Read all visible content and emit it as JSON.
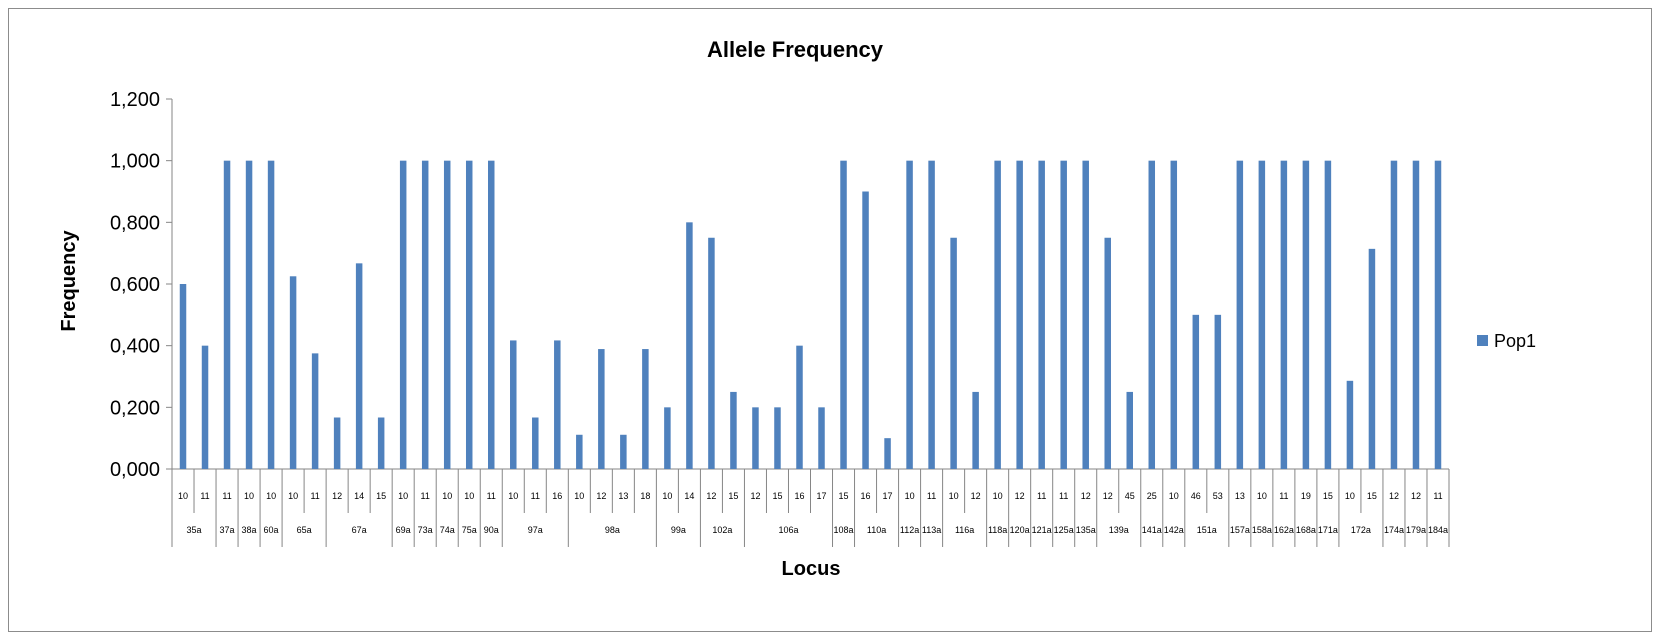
{
  "chart_data": {
    "type": "bar",
    "title": "Allele Frequency",
    "xlabel": "Locus",
    "ylabel": "Frequency",
    "ylim": [
      0,
      1.2
    ],
    "yticks": [
      0,
      0.2,
      0.4,
      0.6,
      0.8,
      1.0,
      1.2
    ],
    "ytick_labels": [
      "0,000",
      "0,200",
      "0,400",
      "0,600",
      "0,800",
      "1,000",
      "1,200"
    ],
    "grid": false,
    "legend_position": "right",
    "categories": [
      {
        "locus": "35a",
        "allele": "10"
      },
      {
        "locus": "35a",
        "allele": "11"
      },
      {
        "locus": "37a",
        "allele": "11"
      },
      {
        "locus": "38a",
        "allele": "10"
      },
      {
        "locus": "60a",
        "allele": "10"
      },
      {
        "locus": "65a",
        "allele": "10"
      },
      {
        "locus": "65a",
        "allele": "11"
      },
      {
        "locus": "67a",
        "allele": "12"
      },
      {
        "locus": "67a",
        "allele": "14"
      },
      {
        "locus": "67a",
        "allele": "15"
      },
      {
        "locus": "69a",
        "allele": "10"
      },
      {
        "locus": "73a",
        "allele": "11"
      },
      {
        "locus": "74a",
        "allele": "10"
      },
      {
        "locus": "75a",
        "allele": "10"
      },
      {
        "locus": "90a",
        "allele": "11"
      },
      {
        "locus": "97a",
        "allele": "10"
      },
      {
        "locus": "97a",
        "allele": "11"
      },
      {
        "locus": "97a",
        "allele": "16"
      },
      {
        "locus": "98a",
        "allele": "10"
      },
      {
        "locus": "98a",
        "allele": "12"
      },
      {
        "locus": "98a",
        "allele": "13"
      },
      {
        "locus": "98a",
        "allele": "18"
      },
      {
        "locus": "99a",
        "allele": "10"
      },
      {
        "locus": "99a",
        "allele": "14"
      },
      {
        "locus": "102a",
        "allele": "12"
      },
      {
        "locus": "102a",
        "allele": "15"
      },
      {
        "locus": "106a",
        "allele": "12"
      },
      {
        "locus": "106a",
        "allele": "15"
      },
      {
        "locus": "106a",
        "allele": "16"
      },
      {
        "locus": "106a",
        "allele": "17"
      },
      {
        "locus": "108a",
        "allele": "15"
      },
      {
        "locus": "110a",
        "allele": "16"
      },
      {
        "locus": "110a",
        "allele": "17"
      },
      {
        "locus": "112a",
        "allele": "10"
      },
      {
        "locus": "113a",
        "allele": "11"
      },
      {
        "locus": "116a",
        "allele": "10"
      },
      {
        "locus": "116a",
        "allele": "12"
      },
      {
        "locus": "118a",
        "allele": "10"
      },
      {
        "locus": "120a",
        "allele": "12"
      },
      {
        "locus": "121a",
        "allele": "11"
      },
      {
        "locus": "125a",
        "allele": "11"
      },
      {
        "locus": "135a",
        "allele": "12"
      },
      {
        "locus": "139a",
        "allele": "12"
      },
      {
        "locus": "139a",
        "allele": "45"
      },
      {
        "locus": "141a",
        "allele": "25"
      },
      {
        "locus": "142a",
        "allele": "10"
      },
      {
        "locus": "151a",
        "allele": "46"
      },
      {
        "locus": "151a",
        "allele": "53"
      },
      {
        "locus": "157a",
        "allele": "13"
      },
      {
        "locus": "158a",
        "allele": "10"
      },
      {
        "locus": "162a",
        "allele": "11"
      },
      {
        "locus": "168a",
        "allele": "19"
      },
      {
        "locus": "171a",
        "allele": "15"
      },
      {
        "locus": "172a",
        "allele": "10"
      },
      {
        "locus": "172a",
        "allele": "15"
      },
      {
        "locus": "174a",
        "allele": "12"
      },
      {
        "locus": "179a",
        "allele": "12"
      },
      {
        "locus": "184a",
        "allele": "11"
      }
    ],
    "series": [
      {
        "name": "Pop1",
        "color": "#4f81bd",
        "values": [
          0.6,
          0.4,
          1.0,
          1.0,
          1.0,
          0.625,
          0.375,
          0.167,
          0.667,
          0.167,
          1.0,
          1.0,
          1.0,
          1.0,
          1.0,
          0.417,
          0.167,
          0.417,
          0.111,
          0.389,
          0.111,
          0.389,
          0.2,
          0.8,
          0.75,
          0.25,
          0.2,
          0.2,
          0.4,
          0.2,
          1.0,
          0.9,
          0.1,
          1.0,
          1.0,
          0.75,
          0.25,
          1.0,
          1.0,
          1.0,
          1.0,
          1.0,
          0.75,
          0.25,
          1.0,
          1.0,
          0.5,
          0.5,
          1.0,
          1.0,
          1.0,
          1.0,
          1.0,
          0.286,
          0.714,
          1.0,
          1.0,
          1.0
        ]
      }
    ]
  }
}
